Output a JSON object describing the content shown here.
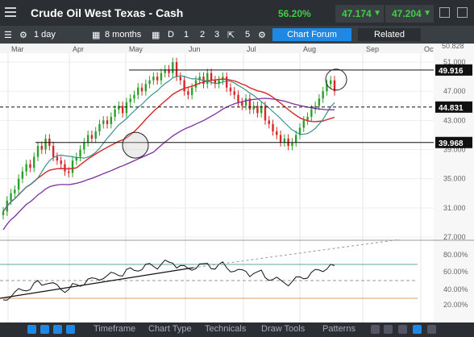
{
  "header": {
    "title": "Crude Oil West Texas - Cash",
    "change_pct": "56.20%",
    "bid": "47.174",
    "ask": "47.204"
  },
  "toolbar": {
    "interval": "1 day",
    "range": "8 months",
    "draw_tools": [
      "D",
      "1",
      "2",
      "3"
    ],
    "count": "5",
    "forum_label": "Chart Forum",
    "related_label": "Related"
  },
  "chart_data": {
    "type": "candlestick",
    "months": [
      "Mar",
      "Apr",
      "May",
      "Jun",
      "Jul",
      "Aug",
      "Sep",
      "Oct"
    ],
    "y_ticks": [
      "51.000",
      "47.000",
      "43.000",
      "39.000",
      "35.000",
      "31.000",
      "27.000"
    ],
    "y_top_partial": "50.828",
    "levels": [
      {
        "label": "49.916",
        "value": 49.916,
        "style": "solid"
      },
      {
        "label": "44.831",
        "value": 44.831,
        "style": "dashed"
      },
      {
        "label": "39.968",
        "value": 39.968,
        "style": "solid"
      }
    ],
    "ylim": [
      27,
      52
    ],
    "close": [
      30.5,
      32,
      33,
      33.5,
      35,
      36,
      37,
      36.5,
      38,
      39.5,
      39,
      40.5,
      39.5,
      38,
      37.5,
      37,
      36,
      35.8,
      37.5,
      38,
      39,
      40,
      41,
      40.5,
      41.5,
      42.5,
      43,
      42.5,
      43.5,
      44.5,
      45,
      44,
      45.5,
      46,
      46.5,
      47.5,
      47,
      48,
      48.5,
      49,
      48.5,
      49.5,
      50,
      49.5,
      51,
      49,
      48.5,
      47,
      46.5,
      47.5,
      48.5,
      49,
      48,
      49.5,
      48.5,
      48,
      48.5,
      49,
      47.5,
      47,
      46.5,
      45.5,
      45,
      46,
      44.5,
      45,
      44,
      45,
      43,
      42.5,
      41.5,
      41,
      40,
      40.5,
      39.5,
      40,
      41,
      42,
      43,
      43.5,
      44.5,
      45,
      46,
      47,
      48,
      48.5,
      47
    ],
    "osc_ticks": [
      "80.00%",
      "60.00%",
      "40.00%",
      "20.00%"
    ]
  },
  "bottom": {
    "items": [
      "Timeframe",
      "Chart Type",
      "Technicals",
      "Draw Tools",
      "Patterns"
    ]
  },
  "colors": {
    "up": "#2ba02b",
    "down": "#d62828",
    "ma_red": "#d62828",
    "ma_teal": "#2a8a8a",
    "ma_purple": "#7b2fa0"
  }
}
